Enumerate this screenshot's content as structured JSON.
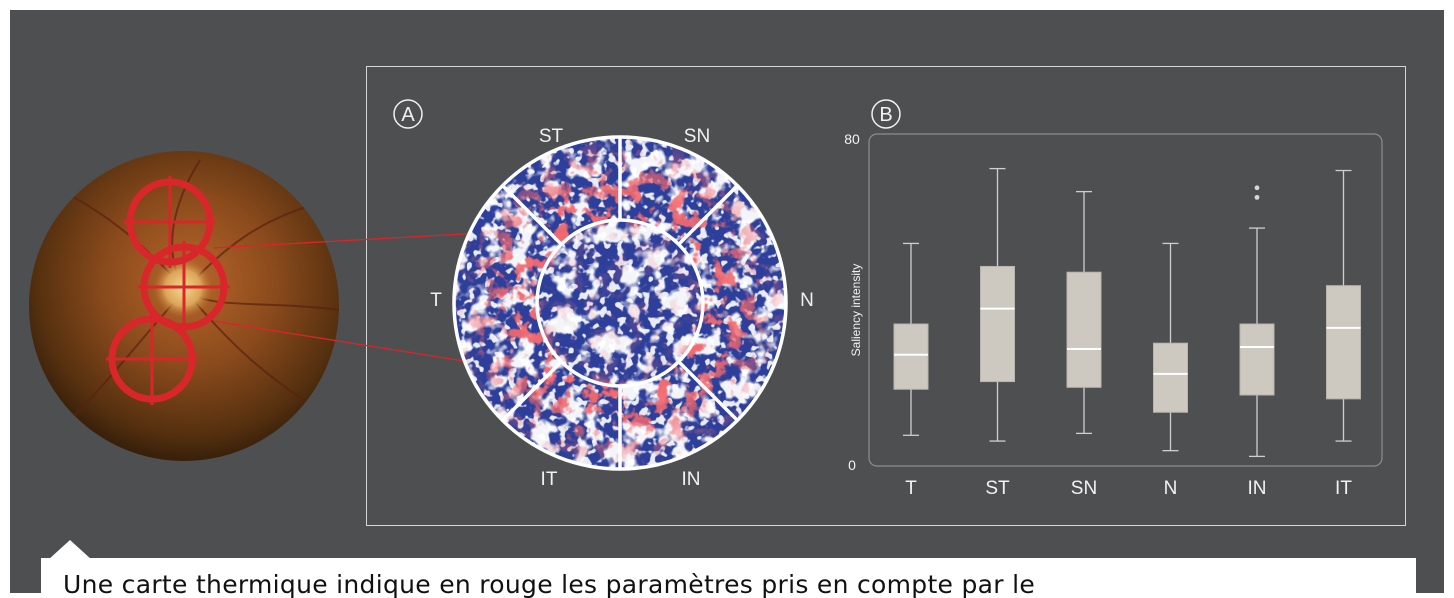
{
  "caption": "Une carte thermique indique en rouge les paramètres pris en compte par le",
  "panel_a": {
    "label": "A",
    "sectors": [
      "ST",
      "SN",
      "N",
      "IN",
      "IT",
      "T"
    ]
  },
  "colors": {
    "background": "#4e4f51",
    "heat_red": "#e0242a",
    "heat_blue": "#2d3f9a",
    "box_fill": "#cdc8c0",
    "circle_red": "#d9262a"
  },
  "chart_data": {
    "type": "box",
    "panel_label": "B",
    "categories": [
      "T",
      "ST",
      "SN",
      "N",
      "IN",
      "IT"
    ],
    "ylabel": "Saliency intensity",
    "ylim": [
      0,
      80
    ],
    "y_ticks": [
      "0",
      "80"
    ],
    "boxes": [
      {
        "category": "T",
        "whisker_low": 8,
        "q1": 20,
        "median": 29,
        "q3": 37,
        "whisker_high": 58
      },
      {
        "category": "ST",
        "whisker_low": 6.5,
        "q1": 22,
        "median": 41,
        "q3": 52,
        "whisker_high": 77.5
      },
      {
        "category": "SN",
        "whisker_low": 8.5,
        "q1": 20.5,
        "median": 30.5,
        "q3": 50.5,
        "whisker_high": 71.5
      },
      {
        "category": "N",
        "whisker_low": 4,
        "q1": 14,
        "median": 24,
        "q3": 32,
        "whisker_high": 58
      },
      {
        "category": "IN",
        "whisker_low": 2.5,
        "q1": 18.5,
        "median": 31,
        "q3": 37,
        "whisker_high": 62,
        "outliers": [
          70,
          72.5
        ]
      },
      {
        "category": "IT",
        "whisker_low": 6.5,
        "q1": 17.5,
        "median": 36,
        "q3": 47,
        "whisker_high": 77
      }
    ]
  }
}
